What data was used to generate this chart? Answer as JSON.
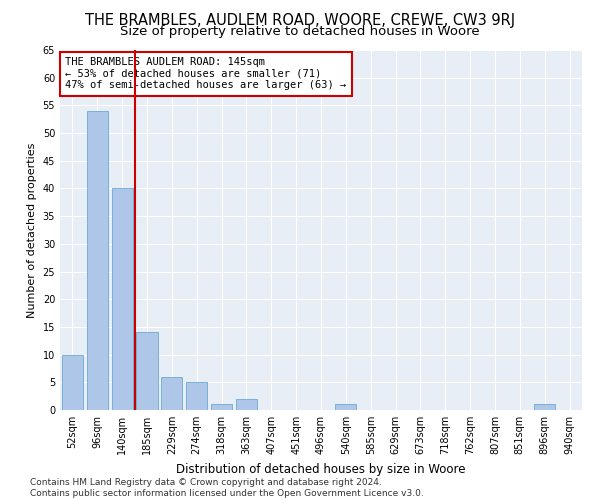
{
  "title": "THE BRAMBLES, AUDLEM ROAD, WOORE, CREWE, CW3 9RJ",
  "subtitle": "Size of property relative to detached houses in Woore",
  "xlabel": "Distribution of detached houses by size in Woore",
  "ylabel": "Number of detached properties",
  "categories": [
    "52sqm",
    "96sqm",
    "140sqm",
    "185sqm",
    "229sqm",
    "274sqm",
    "318sqm",
    "363sqm",
    "407sqm",
    "451sqm",
    "496sqm",
    "540sqm",
    "585sqm",
    "629sqm",
    "673sqm",
    "718sqm",
    "762sqm",
    "807sqm",
    "851sqm",
    "896sqm",
    "940sqm"
  ],
  "values": [
    10,
    54,
    40,
    14,
    6,
    5,
    1,
    2,
    0,
    0,
    0,
    1,
    0,
    0,
    0,
    0,
    0,
    0,
    0,
    1,
    0
  ],
  "bar_color": "#aec6e8",
  "bar_edge_color": "#6aaad4",
  "vline_x": 2.5,
  "vline_color": "#cc0000",
  "annotation_text": "THE BRAMBLES AUDLEM ROAD: 145sqm\n← 53% of detached houses are smaller (71)\n47% of semi-detached houses are larger (63) →",
  "annotation_box_color": "#ffffff",
  "annotation_box_edge": "#cc0000",
  "ylim": [
    0,
    65
  ],
  "yticks": [
    0,
    5,
    10,
    15,
    20,
    25,
    30,
    35,
    40,
    45,
    50,
    55,
    60,
    65
  ],
  "background_color": "#e8eef5",
  "footer_text": "Contains HM Land Registry data © Crown copyright and database right 2024.\nContains public sector information licensed under the Open Government Licence v3.0.",
  "title_fontsize": 10.5,
  "subtitle_fontsize": 9.5,
  "xlabel_fontsize": 8.5,
  "ylabel_fontsize": 8,
  "tick_fontsize": 7,
  "annotation_fontsize": 7.5,
  "footer_fontsize": 6.5
}
